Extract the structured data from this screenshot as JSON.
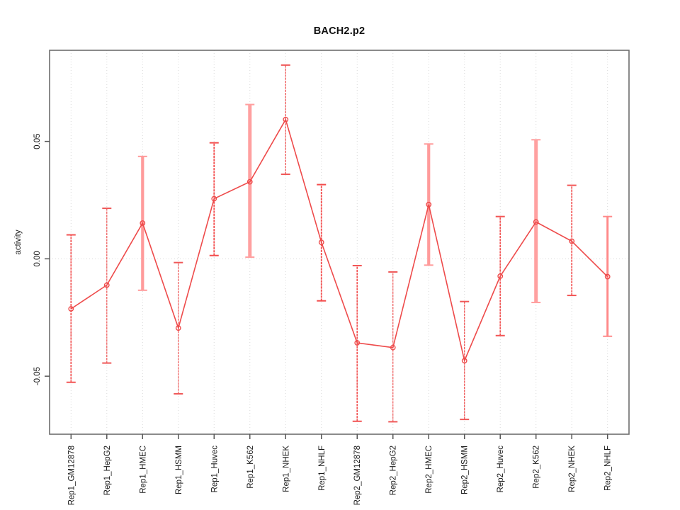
{
  "chart_data": {
    "type": "line",
    "title": "BACH2.p2",
    "ylabel": "activity",
    "xlabel": "",
    "legend": null,
    "grid": {
      "vertical_dotted_per_category": true,
      "horizontal_dotted_at_zero": true
    },
    "categories": [
      "Rep1_GM12878",
      "Rep1_HepG2",
      "Rep1_HMEC",
      "Rep1_HSMM",
      "Rep1_Huvec",
      "Rep1_K562",
      "Rep1_NHEK",
      "Rep1_NHLF",
      "Rep2_GM12878",
      "Rep2_HepG2",
      "Rep2_HMEC",
      "Rep2_HSMM",
      "Rep2_Huvec",
      "Rep2_K562",
      "Rep2_NHEK",
      "Rep2_NHLF"
    ],
    "values": [
      -0.0213,
      -0.0112,
      0.0152,
      -0.0295,
      0.0256,
      0.0328,
      0.0593,
      0.007,
      -0.0358,
      -0.0378,
      0.0231,
      -0.0434,
      -0.0074,
      0.0157,
      0.0075,
      -0.0076
    ],
    "ci_low": [
      -0.0526,
      -0.0444,
      -0.0134,
      -0.0575,
      0.0014,
      0.0007,
      0.036,
      -0.0179,
      -0.0692,
      -0.0694,
      -0.0027,
      -0.0684,
      -0.0327,
      -0.0186,
      -0.0156,
      -0.033
    ],
    "ci_high": [
      0.0102,
      0.0215,
      0.0436,
      -0.0016,
      0.0494,
      0.0657,
      0.0825,
      0.0316,
      -0.0029,
      -0.0056,
      0.0489,
      -0.0182,
      0.018,
      0.0507,
      0.0313,
      0.018
    ],
    "bar_weights": [
      1.7,
      1.2,
      4.2,
      1.2,
      1.8,
      5,
      1.3,
      1.8,
      1.7,
      1.2,
      4.2,
      1.3,
      1.7,
      5,
      1.7,
      3
    ],
    "bar_colors": [
      "#f25555",
      "#ef5858",
      "#ff9b9b",
      "#ef5858",
      "#f34c4c",
      "#ffa0a0",
      "#ef5858",
      "#f34c4c",
      "#f25555",
      "#ef5858",
      "#ff9b9b",
      "#ef5858",
      "#f25555",
      "#ffa0a0",
      "#f25555",
      "#ff8a8a"
    ],
    "yticks": [
      -0.05,
      0,
      0.05
    ],
    "ytick_labels": [
      "-0.05",
      "0.00",
      "0.05"
    ],
    "ylim": [
      -0.0747,
      0.0888
    ],
    "marker": "open-circle",
    "colors": {
      "line": "#ee4b4b",
      "marker": "#ee4b4b",
      "grid": "#d9d9d9",
      "axis": "#6e6e6e",
      "tick": "#555555",
      "text": "#1a1a1a"
    }
  }
}
